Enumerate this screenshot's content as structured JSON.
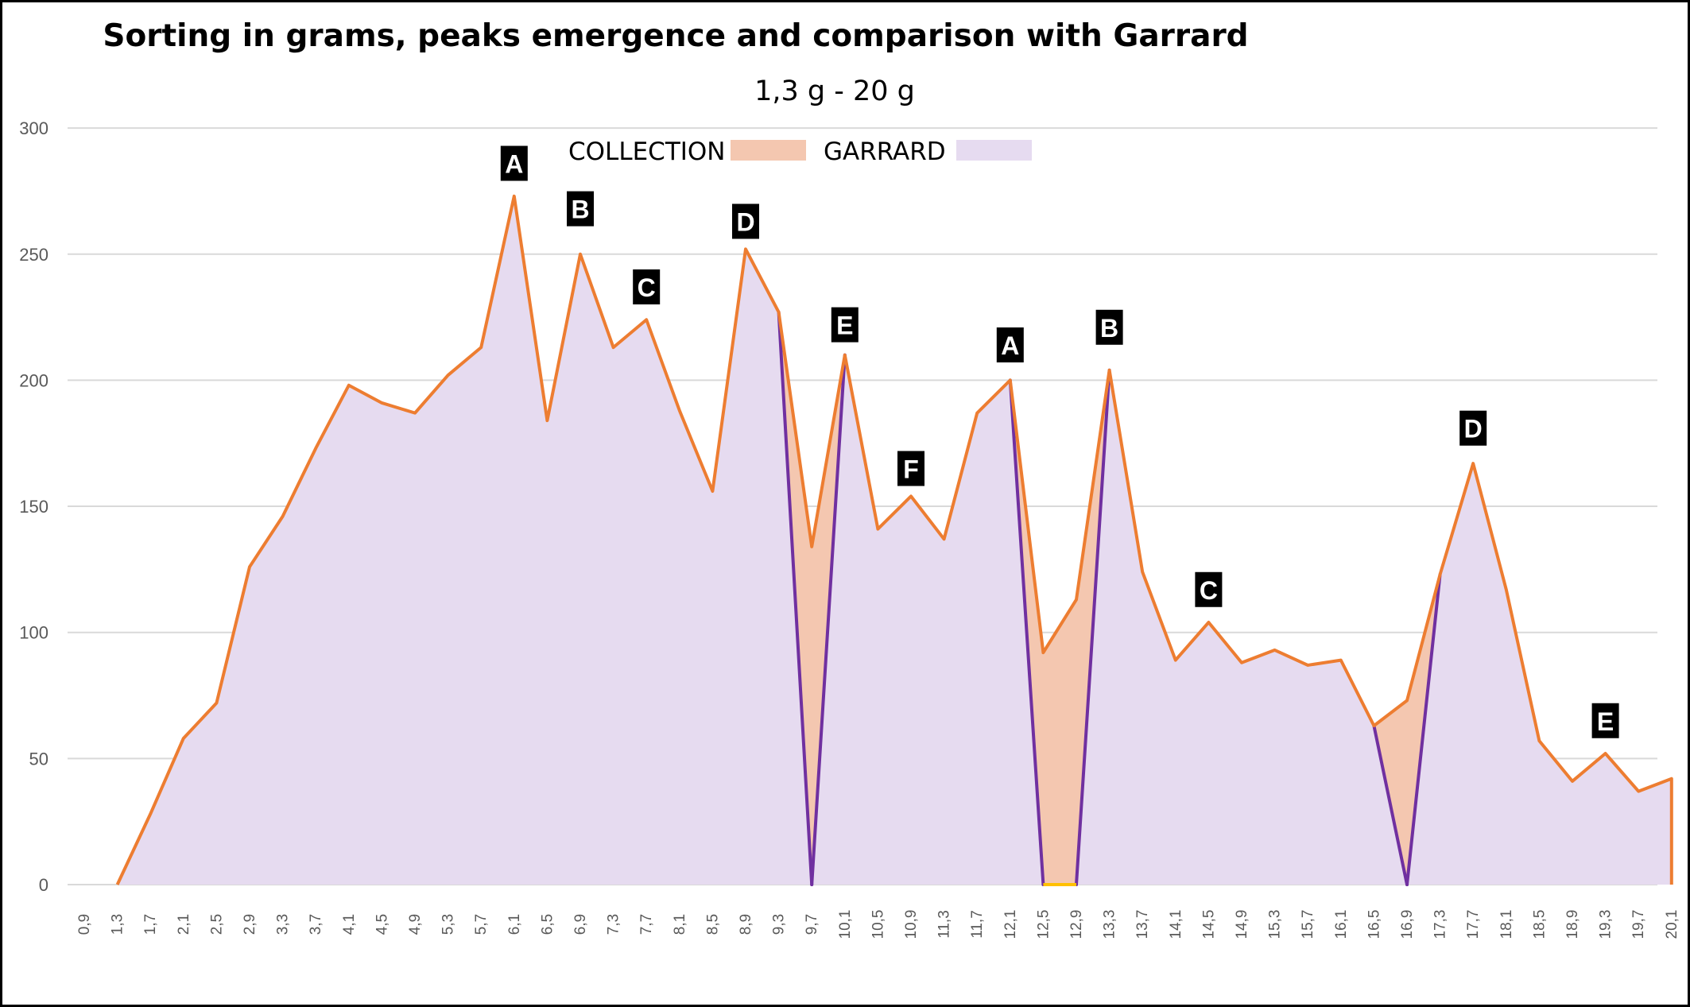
{
  "chart_data": {
    "type": "area",
    "title": "Sorting in grams, peaks emergence and comparison with Garrard",
    "subtitle": "1,3 g - 20 g",
    "ylim": [
      0,
      300
    ],
    "yticks": [
      0,
      50,
      100,
      150,
      200,
      250,
      300
    ],
    "grid": true,
    "legend_position": "top-center",
    "categories": [
      "0,9",
      "1,3",
      "1,7",
      "2,1",
      "2,5",
      "2,9",
      "3,3",
      "3,7",
      "4,1",
      "4,5",
      "4,9",
      "5,3",
      "5,7",
      "6,1",
      "6,5",
      "6,9",
      "7,3",
      "7,7",
      "8,1",
      "8,5",
      "8,9",
      "9,3",
      "9,7",
      "10,1",
      "10,5",
      "10,9",
      "11,3",
      "11,7",
      "12,1",
      "12,5",
      "12,9",
      "13,3",
      "13,7",
      "14,1",
      "14,5",
      "14,9",
      "15,3",
      "15,7",
      "16,1",
      "16,5",
      "16,9",
      "17,3",
      "17,7",
      "18,1",
      "18,5",
      "18,9",
      "19,3",
      "19,7",
      "20,1"
    ],
    "series": [
      {
        "name": "COLLECTION",
        "fill_color": "#f4c7b0",
        "line_color": "#ed7d31",
        "values": [
          null,
          0,
          28,
          58,
          72,
          126,
          146,
          173,
          198,
          191,
          187,
          202,
          213,
          273,
          184,
          250,
          213,
          224,
          188,
          156,
          252,
          227,
          134,
          210,
          141,
          154,
          137,
          187,
          200,
          92,
          113,
          204,
          124,
          89,
          104,
          88,
          93,
          87,
          89,
          63,
          73,
          123,
          167,
          117,
          57,
          41,
          52,
          37,
          42
        ]
      },
      {
        "name": "GARRARD",
        "fill_color": "#e6dbf0",
        "line_color": "#7030a0",
        "values": [
          null,
          0,
          28,
          58,
          72,
          126,
          146,
          173,
          198,
          191,
          187,
          202,
          213,
          273,
          184,
          250,
          213,
          224,
          188,
          156,
          252,
          227,
          0,
          210,
          141,
          154,
          137,
          187,
          200,
          0,
          0,
          204,
          124,
          89,
          104,
          88,
          93,
          87,
          89,
          63,
          0,
          123,
          167,
          117,
          57,
          41,
          52,
          37,
          42
        ]
      }
    ],
    "annotations": [
      {
        "label": "A",
        "x": "6,1",
        "y": 286
      },
      {
        "label": "B",
        "x": "6,9",
        "y": 268
      },
      {
        "label": "C",
        "x": "7,7",
        "y": 237
      },
      {
        "label": "D",
        "x": "8,9",
        "y": 263
      },
      {
        "label": "E",
        "x": "10,1",
        "y": 222
      },
      {
        "label": "F",
        "x": "10,9",
        "y": 165
      },
      {
        "label": "A",
        "x": "12,1",
        "y": 214
      },
      {
        "label": "B",
        "x": "13,3",
        "y": 221
      },
      {
        "label": "D",
        "x": "17,7",
        "y": 181
      },
      {
        "label": "C",
        "x": "14,5",
        "y": 117
      },
      {
        "label": "E",
        "x": "19,3",
        "y": 65
      }
    ]
  }
}
